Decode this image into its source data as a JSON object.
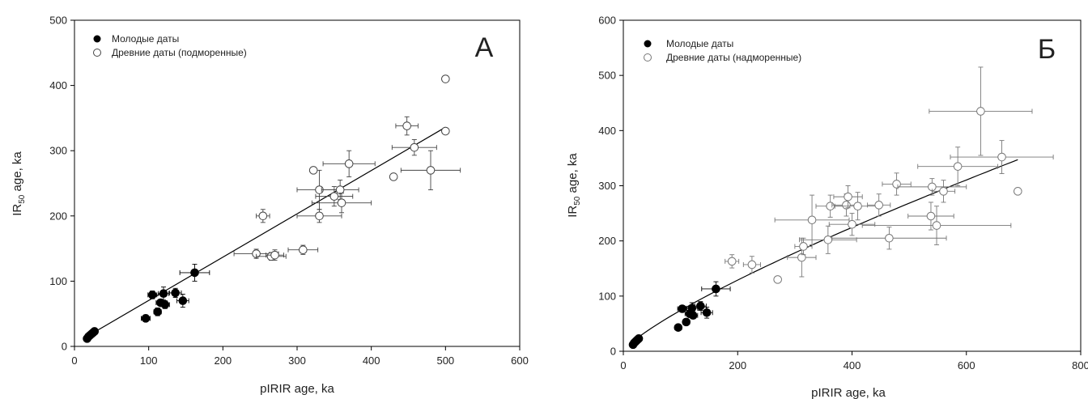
{
  "chart_data": [
    {
      "type": "scatter",
      "panel_label": "А",
      "xlabel": "pIRIR age, ka",
      "ylabel_main": "IR",
      "ylabel_sub": "50",
      "ylabel_rest": " age, ka",
      "xlim": [
        0,
        600
      ],
      "ylim": [
        0,
        500
      ],
      "x_ticks": [
        0,
        100,
        200,
        300,
        400,
        500,
        600
      ],
      "y_ticks": [
        0,
        100,
        200,
        300,
        400,
        500
      ],
      "grid": false,
      "legend_position": "top-left",
      "fit_line": {
        "type": "linear",
        "from": [
          15,
          14
        ],
        "to": [
          500,
          336
        ]
      },
      "series": [
        {
          "name": "Молодые даты",
          "marker": "filled-circle",
          "color": "#000000",
          "points": [
            {
              "x": 17,
              "y": 12
            },
            {
              "x": 19,
              "y": 15
            },
            {
              "x": 21,
              "y": 17
            },
            {
              "x": 23,
              "y": 19
            },
            {
              "x": 25,
              "y": 21
            },
            {
              "x": 27,
              "y": 23
            },
            {
              "x": 96,
              "y": 43,
              "xerr": 6,
              "yerr": 5
            },
            {
              "x": 105,
              "y": 79,
              "xerr": 6,
              "yerr": 6
            },
            {
              "x": 112,
              "y": 53,
              "xerr": 5,
              "yerr": 6
            },
            {
              "x": 116,
              "y": 67,
              "xerr": 6,
              "yerr": 5
            },
            {
              "x": 120,
              "y": 81,
              "xerr": 7,
              "yerr": 10
            },
            {
              "x": 122,
              "y": 64,
              "xerr": 6,
              "yerr": 6
            },
            {
              "x": 136,
              "y": 82,
              "xerr": 8,
              "yerr": 7
            },
            {
              "x": 146,
              "y": 70,
              "xerr": 8,
              "yerr": 10
            },
            {
              "x": 162,
              "y": 113,
              "xerr": 20,
              "yerr": 13
            }
          ]
        },
        {
          "name": "Древние даты (подморенные)",
          "marker": "open-circle",
          "color": "#444444",
          "points": [
            {
              "x": 245,
              "y": 142,
              "xerr": 30,
              "yerr": 7
            },
            {
              "x": 265,
              "y": 138,
              "xerr": 20,
              "yerr": 6
            },
            {
              "x": 270,
              "y": 140,
              "xerr": 12,
              "yerr": 8
            },
            {
              "x": 308,
              "y": 148,
              "xerr": 20,
              "yerr": 7
            },
            {
              "x": 254,
              "y": 200,
              "xerr": 9,
              "yerr": 10
            },
            {
              "x": 322,
              "y": 270
            },
            {
              "x": 330,
              "y": 200,
              "xerr": 30,
              "yerr": 10
            },
            {
              "x": 330,
              "y": 240,
              "xerr": 30,
              "yerr": 30
            },
            {
              "x": 350,
              "y": 230,
              "xerr": 25,
              "yerr": 15
            },
            {
              "x": 358,
              "y": 240,
              "xerr": 25,
              "yerr": 15
            },
            {
              "x": 360,
              "y": 220,
              "xerr": 40,
              "yerr": 15
            },
            {
              "x": 370,
              "y": 280,
              "xerr": 35,
              "yerr": 20
            },
            {
              "x": 430,
              "y": 260
            },
            {
              "x": 448,
              "y": 338,
              "xerr": 15,
              "yerr": 14
            },
            {
              "x": 458,
              "y": 305,
              "xerr": 30,
              "yerr": 12
            },
            {
              "x": 480,
              "y": 270,
              "xerr": 40,
              "yerr": 30
            },
            {
              "x": 500,
              "y": 330
            },
            {
              "x": 500,
              "y": 410
            }
          ]
        }
      ]
    },
    {
      "type": "scatter",
      "panel_label": "Б",
      "xlabel": "pIRIR age, ka",
      "ylabel_main": "IR",
      "ylabel_sub": "50",
      "ylabel_rest": " age, ka",
      "xlim": [
        0,
        800
      ],
      "ylim": [
        0,
        600
      ],
      "x_ticks": [
        0,
        200,
        400,
        600,
        800
      ],
      "y_ticks": [
        0,
        100,
        200,
        300,
        400,
        500,
        600
      ],
      "grid": false,
      "legend_position": "top-left",
      "fit_line": {
        "type": "power",
        "a": 1.86,
        "b": 0.8,
        "x_from": 15,
        "x_to": 690
      },
      "series": [
        {
          "name": "Молодые даты",
          "marker": "filled-circle",
          "color": "#000000",
          "points": [
            {
              "x": 17,
              "y": 12
            },
            {
              "x": 19,
              "y": 15
            },
            {
              "x": 21,
              "y": 17
            },
            {
              "x": 23,
              "y": 19
            },
            {
              "x": 25,
              "y": 21
            },
            {
              "x": 27,
              "y": 23
            },
            {
              "x": 96,
              "y": 43,
              "xerr": 6,
              "yerr": 5
            },
            {
              "x": 103,
              "y": 77,
              "xerr": 8,
              "yerr": 6
            },
            {
              "x": 110,
              "y": 53,
              "xerr": 6,
              "yerr": 6
            },
            {
              "x": 116,
              "y": 68,
              "xerr": 8,
              "yerr": 6
            },
            {
              "x": 120,
              "y": 78,
              "xerr": 10,
              "yerr": 10
            },
            {
              "x": 122,
              "y": 65,
              "xerr": 8,
              "yerr": 6
            },
            {
              "x": 135,
              "y": 82,
              "xerr": 10,
              "yerr": 8
            },
            {
              "x": 146,
              "y": 70,
              "xerr": 10,
              "yerr": 10
            },
            {
              "x": 162,
              "y": 113,
              "xerr": 25,
              "yerr": 13
            }
          ]
        },
        {
          "name": "Древние даты (надморенные)",
          "marker": "open-circle",
          "color": "#777777",
          "points": [
            {
              "x": 190,
              "y": 163,
              "xerr": 12,
              "yerr": 12
            },
            {
              "x": 225,
              "y": 157,
              "xerr": 15,
              "yerr": 15
            },
            {
              "x": 270,
              "y": 130
            },
            {
              "x": 312,
              "y": 170,
              "xerr": 25,
              "yerr": 35
            },
            {
              "x": 315,
              "y": 190,
              "xerr": 15,
              "yerr": 15
            },
            {
              "x": 330,
              "y": 238,
              "xerr": 65,
              "yerr": 45
            },
            {
              "x": 358,
              "y": 202,
              "xerr": 50,
              "yerr": 25
            },
            {
              "x": 362,
              "y": 263,
              "xerr": 25,
              "yerr": 20
            },
            {
              "x": 390,
              "y": 265,
              "xerr": 25,
              "yerr": 20
            },
            {
              "x": 393,
              "y": 280,
              "xerr": 25,
              "yerr": 20
            },
            {
              "x": 400,
              "y": 230,
              "xerr": 40,
              "yerr": 20
            },
            {
              "x": 410,
              "y": 263,
              "xerr": 40,
              "yerr": 25
            },
            {
              "x": 447,
              "y": 265,
              "xerr": 20,
              "yerr": 20
            },
            {
              "x": 465,
              "y": 205,
              "xerr": 100,
              "yerr": 20
            },
            {
              "x": 478,
              "y": 303,
              "xerr": 25,
              "yerr": 20
            },
            {
              "x": 538,
              "y": 245,
              "xerr": 40,
              "yerr": 25
            },
            {
              "x": 540,
              "y": 298,
              "xerr": 60,
              "yerr": 15
            },
            {
              "x": 548,
              "y": 228,
              "xerr": 130,
              "yerr": 35
            },
            {
              "x": 560,
              "y": 290,
              "xerr": 20,
              "yerr": 20
            },
            {
              "x": 585,
              "y": 335,
              "xerr": 70,
              "yerr": 35
            },
            {
              "x": 625,
              "y": 435,
              "xerr": 90,
              "yerr": 80
            },
            {
              "x": 662,
              "y": 352,
              "xerr": 90,
              "yerr": 30
            },
            {
              "x": 690,
              "y": 290
            }
          ]
        }
      ]
    }
  ]
}
